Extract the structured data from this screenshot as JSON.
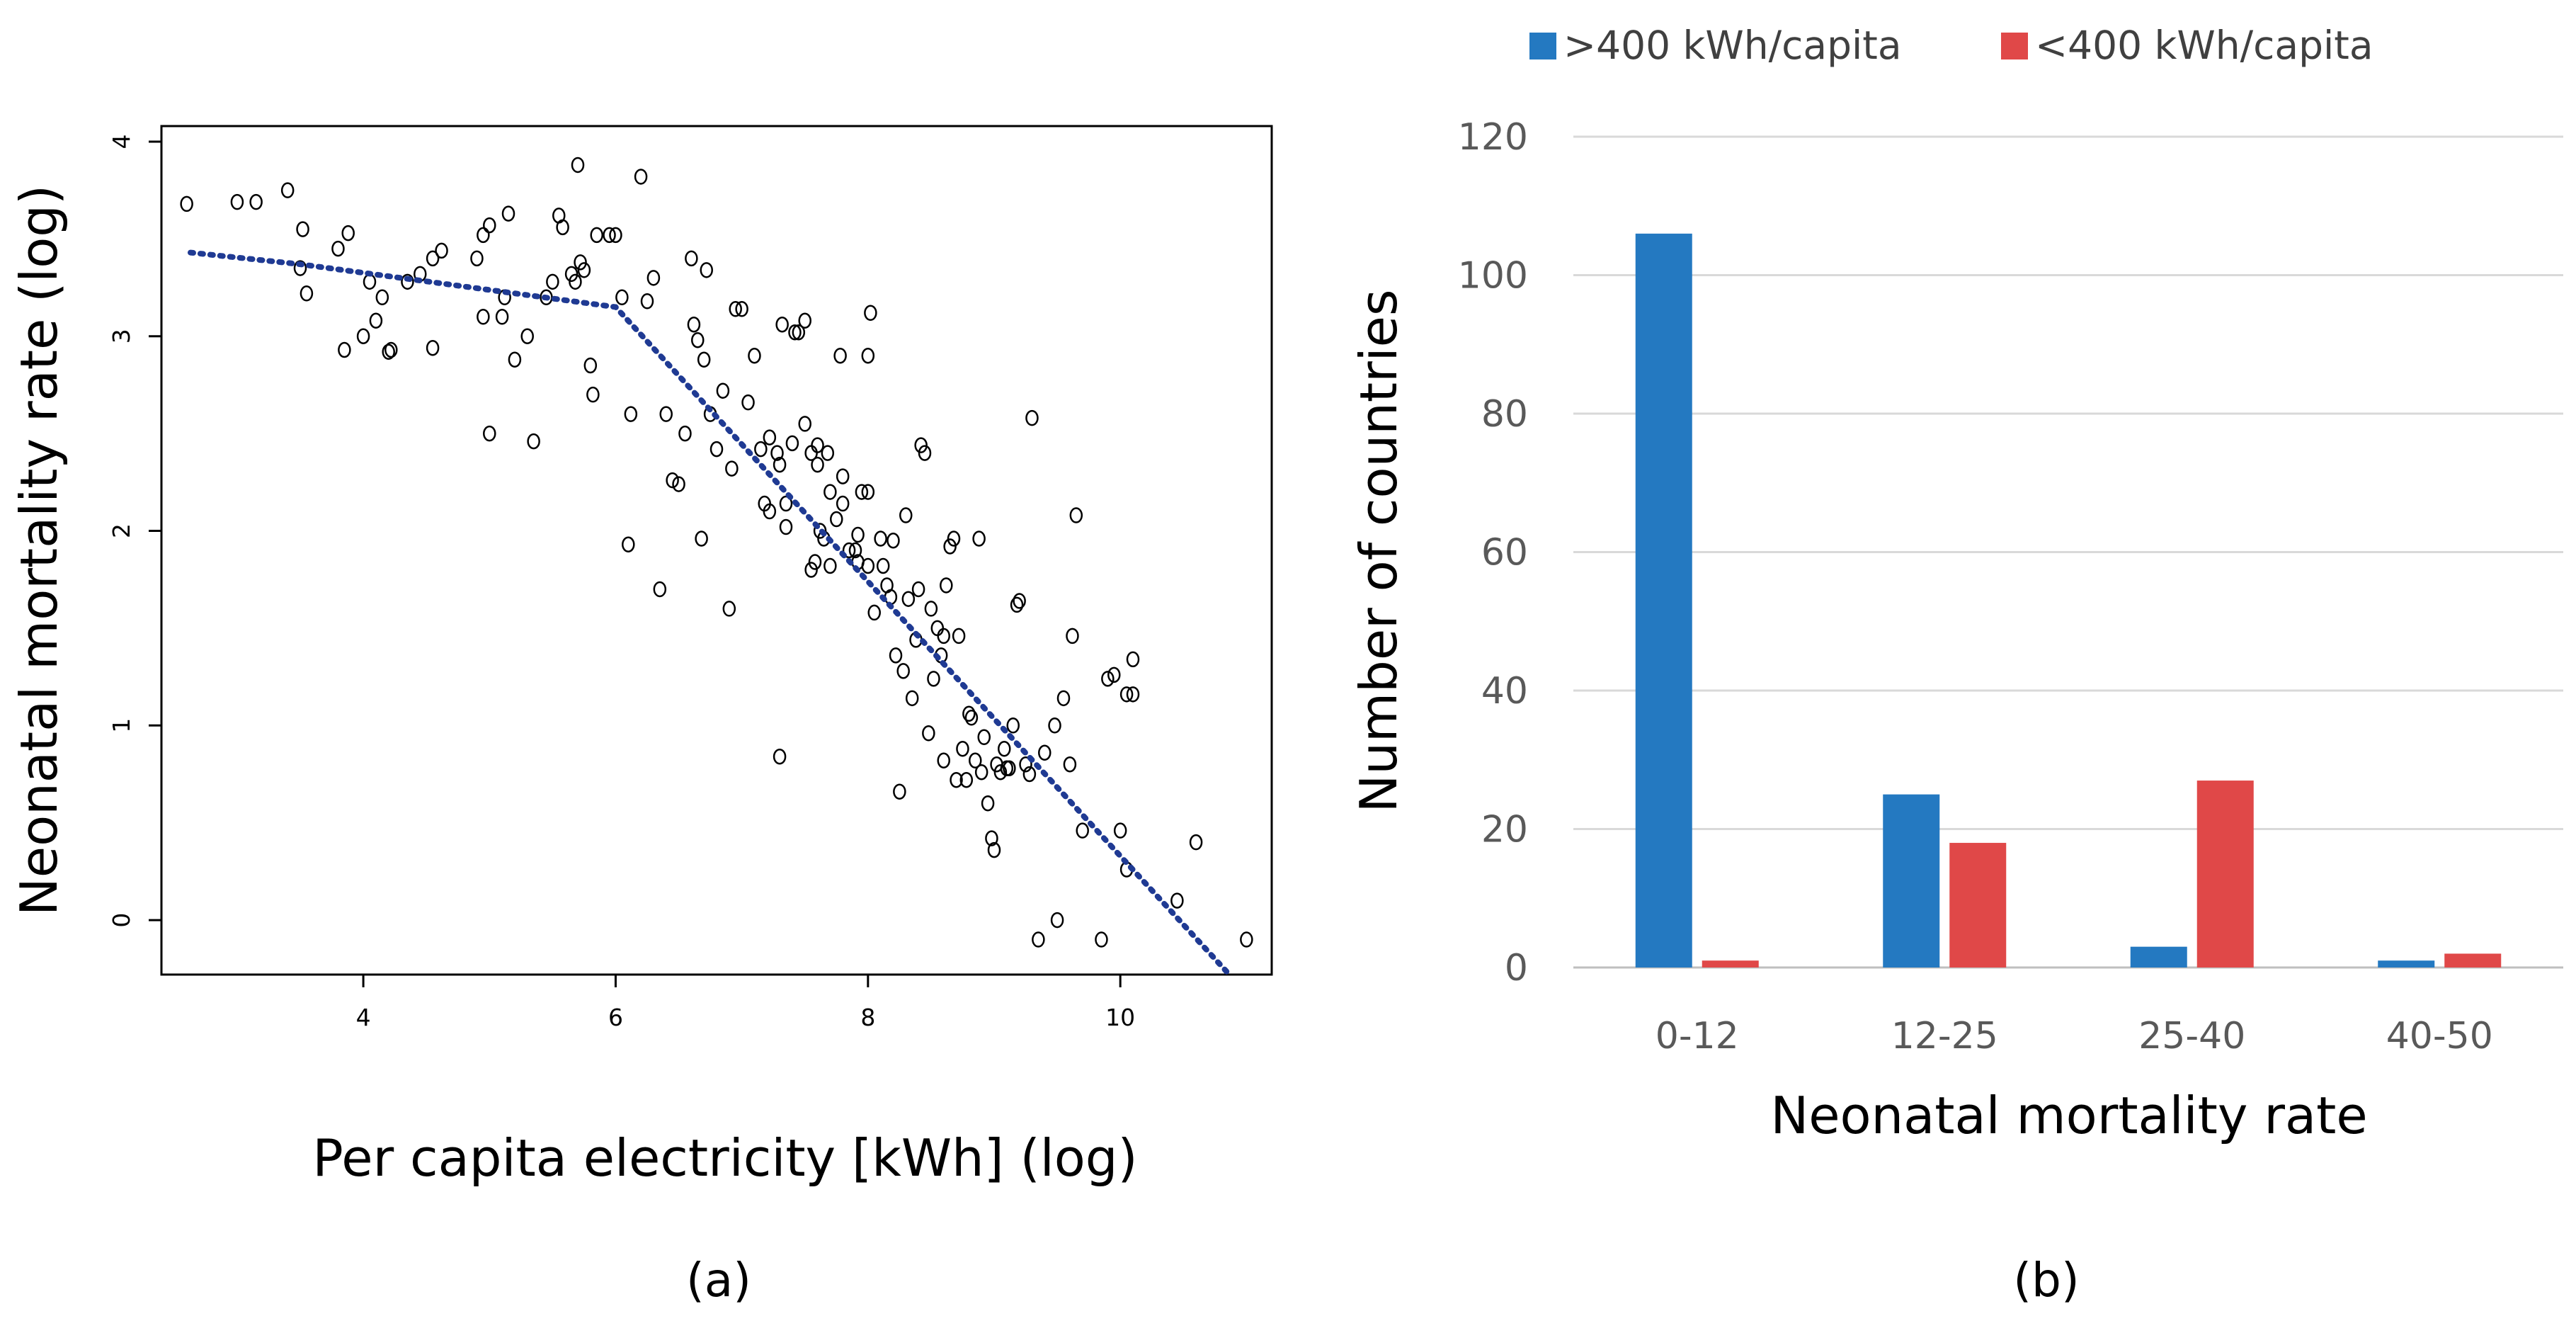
{
  "chart_data": [
    {
      "type": "scatter",
      "panel_label": "(a)",
      "title": "",
      "xlabel": "Per capita electricity [kWh] (log)",
      "ylabel": "Neonatal mortality rate (log)",
      "xlim": [
        2.4,
        11.2
      ],
      "ylim": [
        -0.28,
        4.08
      ],
      "xticks": [
        "4",
        "6",
        "8",
        "10"
      ],
      "yticks": [
        "0",
        "1",
        "2",
        "3",
        "4"
      ],
      "grid": false,
      "trend_line": {
        "style": "dotted",
        "color": "#1f3a93",
        "points": [
          [
            2.63,
            3.43
          ],
          [
            3.5,
            3.37
          ],
          [
            6.0,
            3.15
          ],
          [
            10.85,
            -0.27
          ]
        ]
      },
      "points": [
        [
          2.6,
          3.68
        ],
        [
          3.0,
          3.69
        ],
        [
          3.15,
          3.69
        ],
        [
          3.4,
          3.75
        ],
        [
          3.5,
          3.35
        ],
        [
          3.52,
          3.55
        ],
        [
          3.55,
          3.22
        ],
        [
          3.8,
          3.45
        ],
        [
          3.88,
          3.53
        ],
        [
          3.85,
          2.93
        ],
        [
          4.0,
          3.0
        ],
        [
          4.05,
          3.28
        ],
        [
          4.1,
          3.08
        ],
        [
          4.15,
          3.2
        ],
        [
          4.2,
          2.92
        ],
        [
          4.22,
          2.93
        ],
        [
          4.35,
          3.28
        ],
        [
          4.45,
          3.32
        ],
        [
          4.55,
          2.94
        ],
        [
          4.55,
          3.4
        ],
        [
          4.62,
          3.44
        ],
        [
          4.9,
          3.4
        ],
        [
          4.95,
          3.52
        ],
        [
          5.0,
          3.57
        ],
        [
          4.95,
          3.1
        ],
        [
          5.0,
          2.5
        ],
        [
          5.1,
          3.1
        ],
        [
          5.12,
          3.2
        ],
        [
          5.15,
          3.63
        ],
        [
          5.2,
          2.88
        ],
        [
          5.3,
          3.0
        ],
        [
          5.35,
          2.46
        ],
        [
          5.45,
          3.2
        ],
        [
          5.5,
          3.28
        ],
        [
          5.55,
          3.62
        ],
        [
          5.58,
          3.56
        ],
        [
          5.65,
          3.32
        ],
        [
          5.68,
          3.28
        ],
        [
          5.72,
          3.38
        ],
        [
          5.75,
          3.34
        ],
        [
          5.7,
          3.88
        ],
        [
          5.8,
          2.85
        ],
        [
          5.82,
          2.7
        ],
        [
          5.85,
          3.52
        ],
        [
          5.95,
          3.52
        ],
        [
          6.0,
          3.52
        ],
        [
          6.05,
          3.2
        ],
        [
          6.1,
          1.93
        ],
        [
          6.12,
          2.6
        ],
        [
          6.2,
          3.82
        ],
        [
          6.25,
          3.18
        ],
        [
          6.3,
          3.3
        ],
        [
          6.35,
          1.7
        ],
        [
          6.4,
          2.6
        ],
        [
          6.45,
          2.26
        ],
        [
          6.5,
          2.24
        ],
        [
          6.55,
          2.5
        ],
        [
          6.6,
          3.4
        ],
        [
          6.62,
          3.06
        ],
        [
          6.65,
          2.98
        ],
        [
          6.7,
          2.88
        ],
        [
          6.72,
          3.34
        ],
        [
          6.68,
          1.96
        ],
        [
          6.75,
          2.6
        ],
        [
          6.8,
          2.42
        ],
        [
          6.85,
          2.72
        ],
        [
          6.9,
          1.6
        ],
        [
          6.92,
          2.32
        ],
        [
          6.95,
          3.14
        ],
        [
          7.0,
          3.14
        ],
        [
          7.05,
          2.66
        ],
        [
          7.1,
          2.9
        ],
        [
          7.15,
          2.42
        ],
        [
          7.18,
          2.14
        ],
        [
          7.22,
          2.48
        ],
        [
          7.22,
          2.1
        ],
        [
          7.28,
          2.4
        ],
        [
          7.3,
          2.34
        ],
        [
          7.3,
          0.84
        ],
        [
          7.32,
          3.06
        ],
        [
          7.35,
          2.14
        ],
        [
          7.4,
          2.45
        ],
        [
          7.42,
          3.02
        ],
        [
          7.45,
          3.02
        ],
        [
          7.5,
          2.55
        ],
        [
          7.5,
          3.08
        ],
        [
          7.55,
          2.4
        ],
        [
          7.55,
          1.8
        ],
        [
          7.58,
          1.84
        ],
        [
          7.6,
          2.44
        ],
        [
          7.6,
          2.34
        ],
        [
          7.62,
          2.0
        ],
        [
          7.65,
          1.96
        ],
        [
          7.68,
          2.4
        ],
        [
          7.7,
          2.2
        ],
        [
          7.7,
          1.82
        ],
        [
          7.75,
          2.06
        ],
        [
          7.78,
          2.9
        ],
        [
          7.8,
          2.28
        ],
        [
          7.8,
          2.14
        ],
        [
          7.85,
          1.9
        ],
        [
          7.9,
          1.9
        ],
        [
          7.92,
          1.84
        ],
        [
          7.95,
          2.2
        ],
        [
          8.0,
          2.2
        ],
        [
          8.0,
          1.82
        ],
        [
          8.0,
          2.9
        ],
        [
          8.02,
          3.12
        ],
        [
          8.05,
          1.58
        ],
        [
          8.1,
          1.96
        ],
        [
          8.12,
          1.82
        ],
        [
          8.15,
          1.72
        ],
        [
          8.18,
          1.66
        ],
        [
          8.2,
          1.95
        ],
        [
          8.22,
          1.36
        ],
        [
          8.25,
          0.66
        ],
        [
          8.28,
          1.28
        ],
        [
          8.3,
          2.08
        ],
        [
          8.32,
          1.65
        ],
        [
          8.35,
          1.14
        ],
        [
          8.4,
          1.7
        ],
        [
          8.42,
          2.44
        ],
        [
          8.45,
          2.4
        ],
        [
          8.48,
          0.96
        ],
        [
          8.5,
          1.6
        ],
        [
          8.52,
          1.24
        ],
        [
          8.55,
          1.5
        ],
        [
          8.58,
          1.36
        ],
        [
          8.6,
          1.46
        ],
        [
          8.62,
          1.72
        ],
        [
          8.65,
          1.92
        ],
        [
          8.68,
          1.96
        ],
        [
          8.7,
          0.72
        ],
        [
          8.72,
          1.46
        ],
        [
          8.75,
          0.88
        ],
        [
          8.78,
          0.72
        ],
        [
          8.8,
          1.06
        ],
        [
          8.82,
          1.04
        ],
        [
          8.85,
          0.82
        ],
        [
          8.88,
          1.96
        ],
        [
          8.9,
          0.76
        ],
        [
          8.92,
          0.94
        ],
        [
          8.95,
          0.6
        ],
        [
          8.98,
          0.42
        ],
        [
          9.0,
          0.36
        ],
        [
          9.02,
          0.8
        ],
        [
          9.05,
          0.76
        ],
        [
          9.08,
          0.88
        ],
        [
          9.1,
          0.78
        ],
        [
          9.12,
          0.78
        ],
        [
          9.15,
          1.0
        ],
        [
          9.18,
          1.62
        ],
        [
          9.2,
          1.64
        ],
        [
          9.25,
          0.8
        ],
        [
          9.28,
          0.75
        ],
        [
          9.3,
          2.58
        ],
        [
          9.35,
          -0.1
        ],
        [
          9.4,
          0.86
        ],
        [
          9.48,
          1.0
        ],
        [
          9.5,
          0.0
        ],
        [
          9.55,
          1.14
        ],
        [
          9.6,
          0.8
        ],
        [
          9.62,
          1.46
        ],
        [
          9.65,
          2.08
        ],
        [
          9.7,
          0.46
        ],
        [
          9.85,
          -0.1
        ],
        [
          9.9,
          1.24
        ],
        [
          9.95,
          1.26
        ],
        [
          10.0,
          0.46
        ],
        [
          10.05,
          1.16
        ],
        [
          10.05,
          0.26
        ],
        [
          10.1,
          1.16
        ],
        [
          10.1,
          1.34
        ],
        [
          10.45,
          0.1
        ],
        [
          10.6,
          0.4
        ],
        [
          11.0,
          -0.1
        ],
        [
          7.92,
          1.98
        ],
        [
          8.38,
          1.44
        ],
        [
          7.35,
          2.02
        ],
        [
          8.6,
          0.82
        ]
      ]
    },
    {
      "type": "bar",
      "panel_label": "(b)",
      "title": "",
      "xlabel": "Neonatal mortality rate",
      "ylabel": "Number of countries",
      "categories": [
        "0-12",
        "12-25",
        "25-40",
        "40-50"
      ],
      "ylim": [
        0,
        120
      ],
      "yticks": [
        "0",
        "20",
        "40",
        "60",
        "80",
        "100",
        "120"
      ],
      "grid": true,
      "legend_position": "top",
      "series": [
        {
          "name": ">400 kWh/capita",
          "color": "#2479c1",
          "values": [
            106,
            25,
            3,
            1
          ]
        },
        {
          "name": "<400 kWh/capita",
          "color": "#e04848",
          "values": [
            1,
            18,
            27,
            2
          ]
        }
      ]
    }
  ]
}
